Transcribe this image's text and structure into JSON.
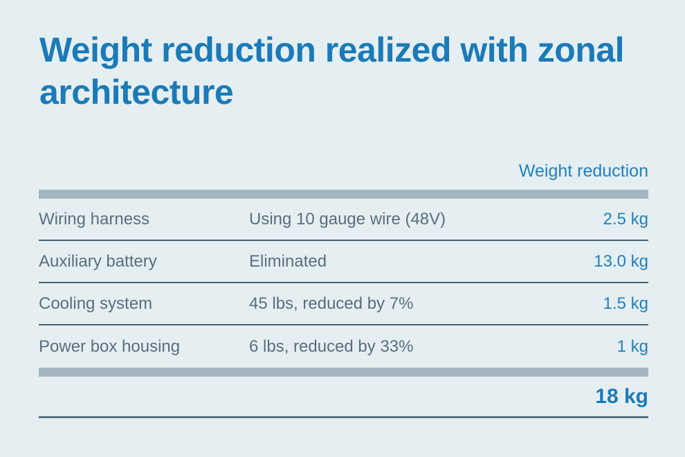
{
  "chart_data": {
    "type": "table",
    "title": "Weight reduction realized with zonal architecture",
    "value_column_header": "Weight reduction",
    "rows": [
      {
        "item": "Wiring harness",
        "detail": "Using 10 gauge wire (48V)",
        "value": "2.5 kg",
        "value_kg": 2.5
      },
      {
        "item": "Auxiliary battery",
        "detail": "Eliminated",
        "value": "13.0 kg",
        "value_kg": 13.0
      },
      {
        "item": "Cooling system",
        "detail": "45 lbs, reduced by 7%",
        "value": "1.5 kg",
        "value_kg": 1.5
      },
      {
        "item": "Power box housing",
        "detail": "6 lbs, reduced by 33%",
        "value": "1 kg",
        "value_kg": 1.0
      }
    ],
    "total": "18 kg",
    "total_kg": 18,
    "layout": "three columns: item, detail, right-aligned value; thick gray bars above first row and above total row; dark rule under total"
  },
  "colors": {
    "background": "#e5eef1",
    "accent_blue": "#1b7ab8",
    "value_blue": "#2080bf",
    "body_text": "#5a6e7d",
    "thick_bar": "#a4b7c0",
    "row_divider": "#46606f",
    "baseline_rule": "#5a7180"
  }
}
